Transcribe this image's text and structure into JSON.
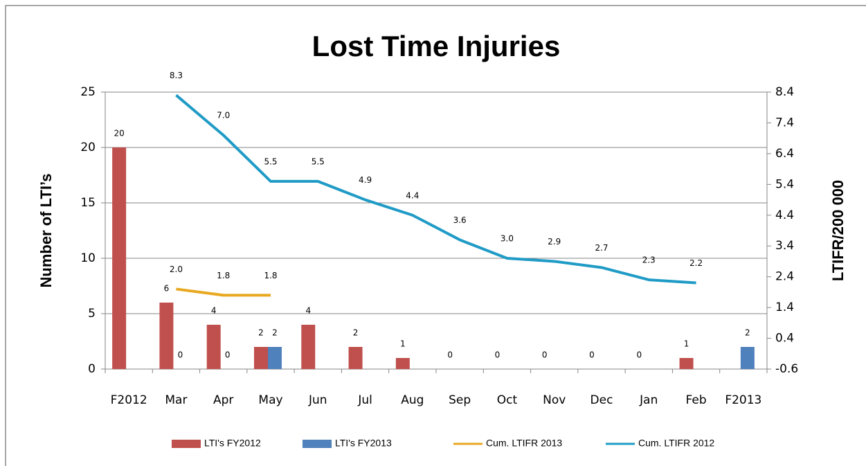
{
  "chart_data": {
    "type": "bar",
    "title": "Lost Time Injuries",
    "y_label": "Number of LTI’s",
    "y2_label": "LTIFR/200 000",
    "categories": [
      "F2012",
      "Mar",
      "Apr",
      "May",
      "Jun",
      "Jul",
      "Aug",
      "Sep",
      "Oct",
      "Nov",
      "Dec",
      "Jan",
      "Feb",
      "F2013"
    ],
    "series": [
      {
        "name": "LTI's FY2012",
        "type": "bar",
        "color": "#c0504d",
        "values": [
          20,
          6,
          4,
          2,
          4,
          2,
          1,
          0,
          0,
          0,
          0,
          0,
          1,
          null
        ]
      },
      {
        "name": "LTI's FY2013",
        "type": "bar",
        "color": "#4f81bd",
        "values": [
          null,
          0,
          0,
          2,
          null,
          null,
          null,
          null,
          null,
          null,
          null,
          null,
          null,
          2
        ]
      },
      {
        "name": "Cum. LTIFR 2013",
        "type": "line",
        "axis": "y2",
        "color": "#e8a820",
        "values": [
          null,
          2.0,
          1.8,
          1.8,
          null,
          null,
          null,
          null,
          null,
          null,
          null,
          null,
          null,
          null
        ],
        "value_labels": [
          null,
          "2.0",
          "1.8",
          "1.8",
          null,
          null,
          null,
          null,
          null,
          null,
          null,
          null,
          null,
          null
        ]
      },
      {
        "name": "Cum. LTIFR 2012",
        "type": "line",
        "axis": "y2",
        "color": "#1f9bc6",
        "values": [
          null,
          8.3,
          7.0,
          5.5,
          5.5,
          4.9,
          4.4,
          3.6,
          3.0,
          2.9,
          2.7,
          2.3,
          2.2,
          null
        ],
        "value_labels": [
          null,
          "8.3",
          "7.0",
          "5.5",
          "5.5",
          "4.9",
          "4.4",
          "3.6",
          "3.0",
          "2.9",
          "2.7",
          "2.3",
          "2.2",
          null
        ]
      }
    ],
    "ylim": [
      0,
      25
    ],
    "yticks": [
      0,
      5,
      10,
      15,
      20,
      25
    ],
    "y2lim": [
      -0.6,
      8.4
    ],
    "y2ticks": [
      -0.6,
      0.4,
      1.4,
      2.4,
      3.4,
      4.4,
      5.4,
      6.4,
      7.4,
      8.4
    ],
    "grid": true,
    "legend": "bottom"
  }
}
